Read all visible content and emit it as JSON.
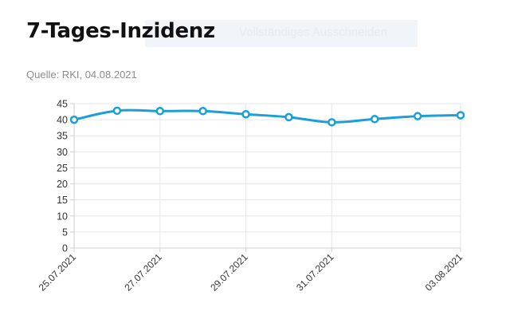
{
  "overlay": {
    "text": "Vollständiges Ausschneiden"
  },
  "header": {
    "title": "7-Tages-Inzidenz",
    "source": "Quelle: RKI, 04.08.2021"
  },
  "colors": {
    "line": "#1a9fd9",
    "grid": "#e6e6e6",
    "axis": "#cfcfcf"
  },
  "chart_data": {
    "type": "line",
    "x": [
      "25.07.2021",
      "26.07.2021",
      "27.07.2021",
      "28.07.2021",
      "29.07.2021",
      "30.07.2021",
      "31.07.2021",
      "01.08.2021",
      "02.08.2021",
      "03.08.2021"
    ],
    "x_tick_labels": [
      "25.07.2021",
      "27.07.2021",
      "29.07.2021",
      "31.07.2021",
      "03.08.2021"
    ],
    "series": [
      {
        "values": [
          40.0,
          42.8,
          42.7,
          42.7,
          41.7,
          40.8,
          39.2,
          40.2,
          41.1,
          41.4
        ]
      }
    ],
    "ylim": [
      0,
      45
    ],
    "y_ticks": [
      0,
      5,
      10,
      15,
      20,
      25,
      30,
      35,
      40,
      45
    ],
    "grid": true,
    "xlabel": "",
    "ylabel": ""
  }
}
